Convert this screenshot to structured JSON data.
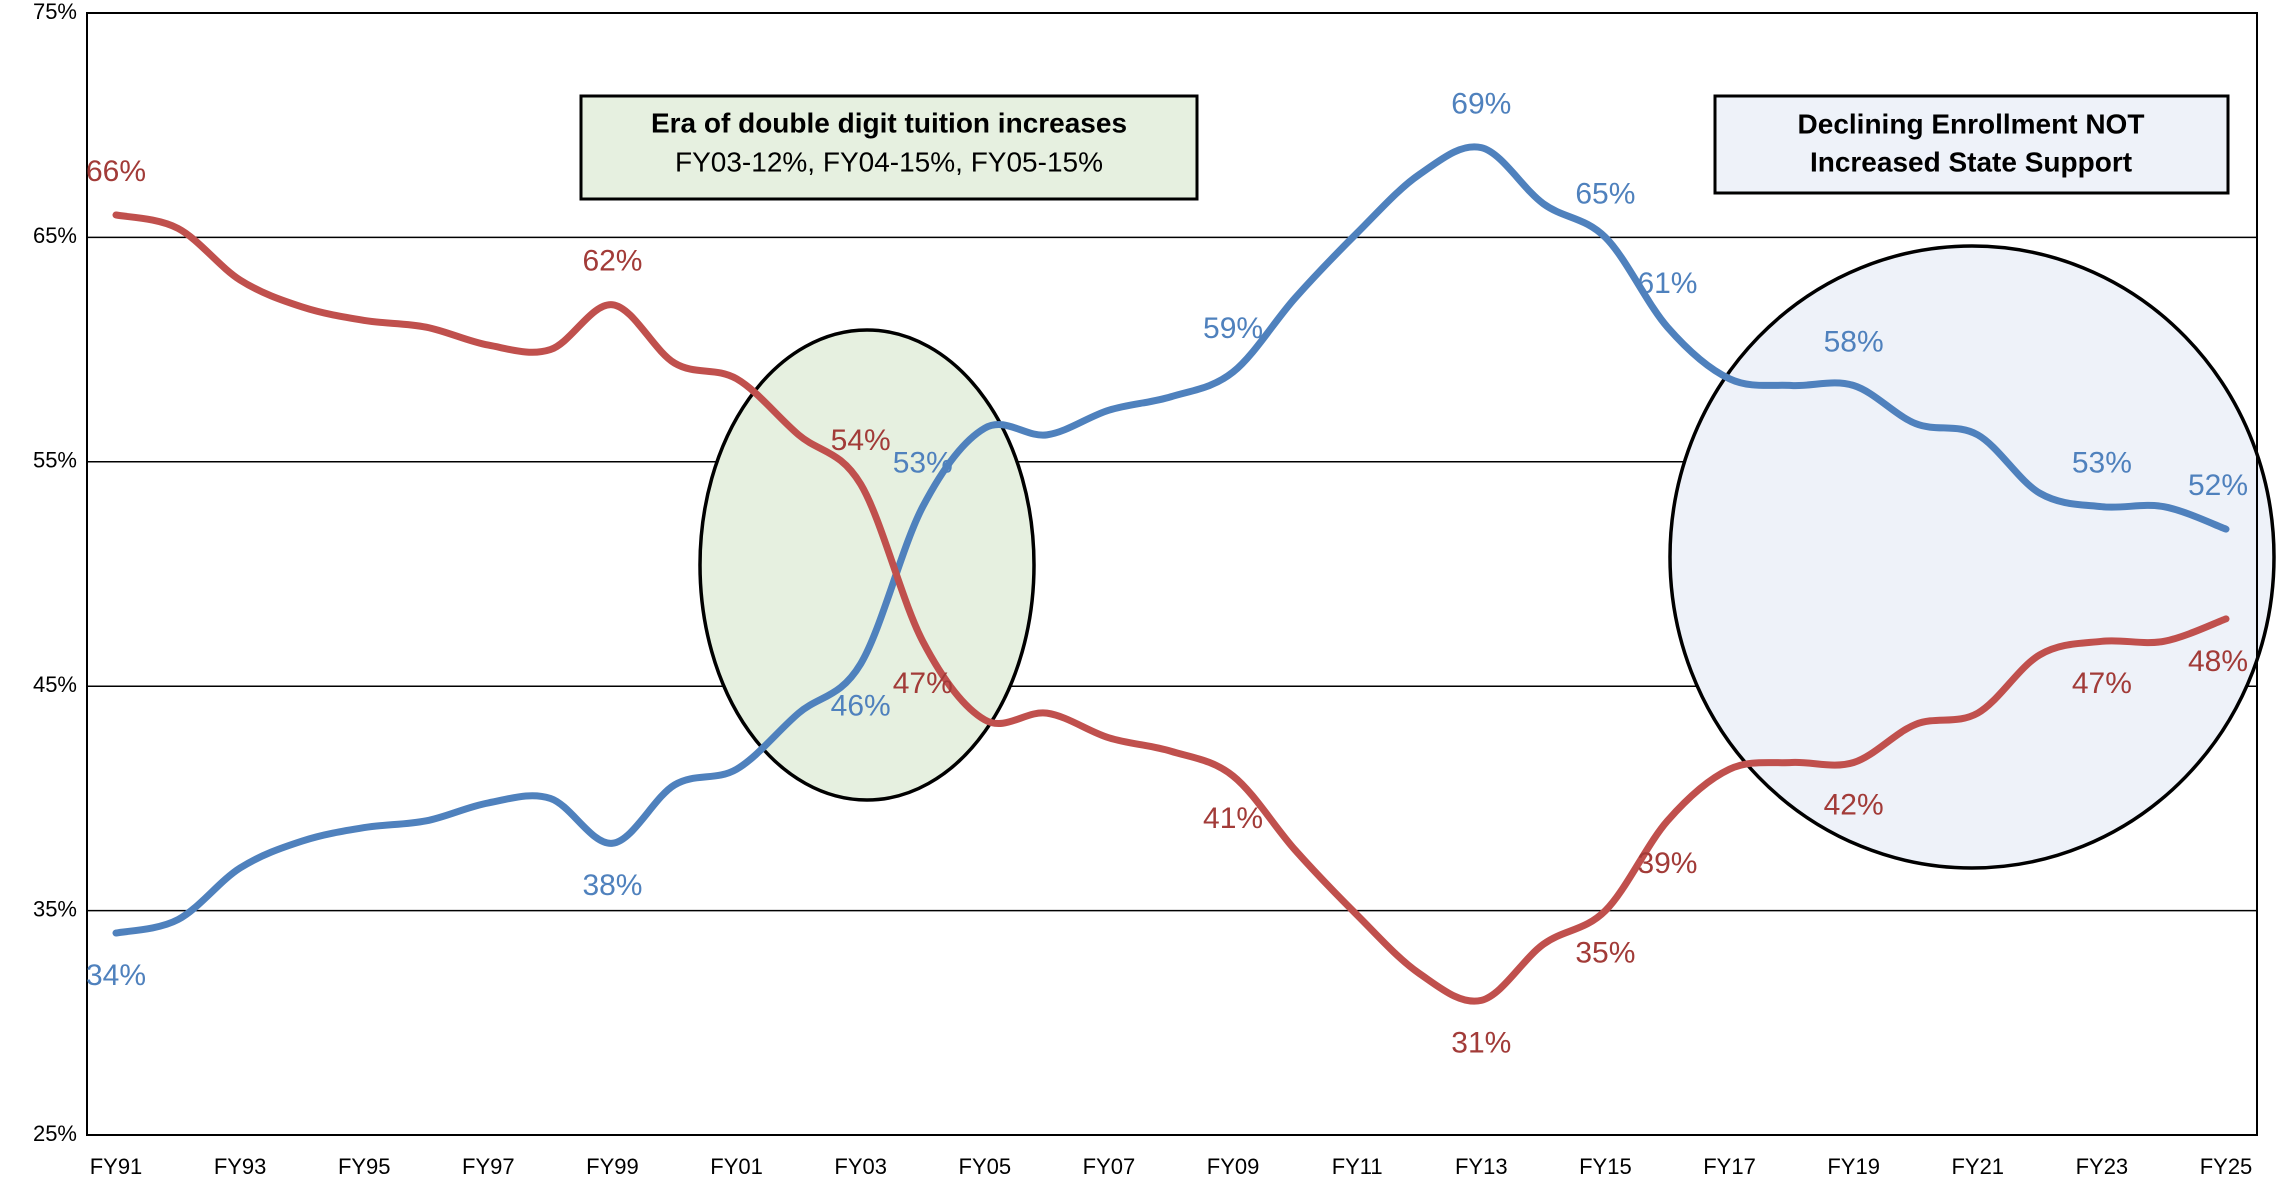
{
  "chart_data": {
    "type": "line",
    "categories": [
      "FY91",
      null,
      "FY93",
      null,
      "FY95",
      null,
      "FY97",
      null,
      "FY99",
      null,
      "FY01",
      null,
      "FY03",
      null,
      "FY05",
      null,
      "FY07",
      null,
      "FY09",
      null,
      "FY11",
      null,
      "FY13",
      null,
      "FY15",
      null,
      "FY17",
      null,
      "FY19",
      null,
      "FY21",
      null,
      "FY23",
      null,
      "FY25"
    ],
    "series": [
      {
        "color": "#4f81bd",
        "values": [
          34,
          34.6,
          36.9,
          38.1,
          38.7,
          39,
          39.8,
          40,
          38,
          40.6,
          41.3,
          43.8,
          46,
          53,
          56.5,
          56.2,
          57.3,
          57.9,
          59,
          62.3,
          65.2,
          67.8,
          69,
          66.5,
          65,
          61,
          58.7,
          58.4,
          58.4,
          56.7,
          56.2,
          53.6,
          53,
          53,
          52
        ],
        "value_labels": [
          "34%",
          null,
          null,
          null,
          null,
          null,
          null,
          null,
          "38%",
          null,
          null,
          null,
          "46%",
          "53%",
          null,
          null,
          null,
          null,
          "59%",
          null,
          null,
          null,
          "69%",
          null,
          "65%",
          "61%",
          null,
          null,
          "58%",
          null,
          null,
          null,
          "53%",
          null,
          "52%"
        ]
      },
      {
        "color": "#c0504d",
        "values": [
          66,
          65.4,
          63.1,
          61.9,
          61.3,
          61,
          60.2,
          60,
          62,
          59.4,
          58.7,
          56.2,
          54,
          47,
          43.5,
          43.8,
          42.7,
          42.1,
          41,
          37.7,
          34.8,
          32.2,
          31,
          33.5,
          35,
          39,
          41.3,
          41.6,
          41.6,
          43.3,
          43.8,
          46.4,
          47,
          47,
          48
        ],
        "value_labels": [
          "66%",
          null,
          null,
          null,
          null,
          null,
          null,
          null,
          "62%",
          null,
          null,
          null,
          "54%",
          "47%",
          null,
          null,
          null,
          null,
          "41%",
          null,
          null,
          null,
          "31%",
          null,
          "35%",
          "39%",
          null,
          null,
          "42%",
          null,
          null,
          null,
          "47%",
          null,
          "48%"
        ]
      }
    ],
    "ylim": [
      25,
      75
    ],
    "yticks": [
      {
        "value": 25,
        "label": "25%"
      },
      {
        "value": 35,
        "label": "35%"
      },
      {
        "value": 45,
        "label": "45%"
      },
      {
        "value": 55,
        "label": "55%"
      },
      {
        "value": 65,
        "label": "65%"
      },
      {
        "value": 75,
        "label": "75%"
      }
    ],
    "grid": true,
    "annotations": [
      {
        "lines": [
          "Era of double digit tuition increases",
          "FY03-12%, FY04-15%, FY05-15%"
        ]
      },
      {
        "lines": [
          "Declining Enrollment NOT",
          "Increased State Support"
        ]
      }
    ]
  }
}
